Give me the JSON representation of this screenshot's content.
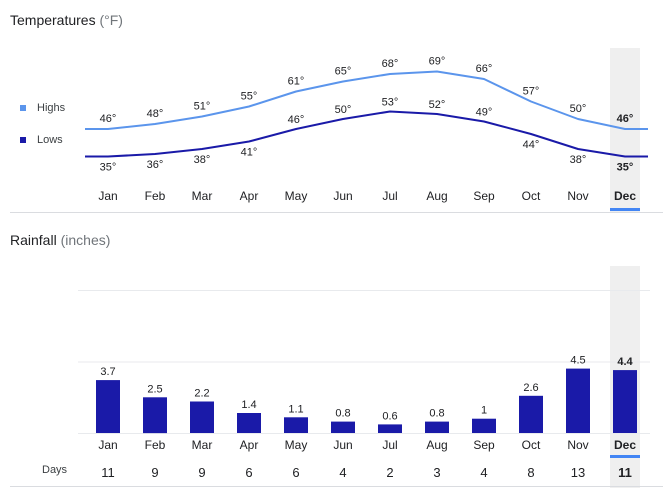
{
  "temperatures": {
    "title": "Temperatures",
    "unit": "(°F)",
    "legend": {
      "highs": "Highs",
      "lows": "Lows"
    }
  },
  "rainfall": {
    "title": "Rainfall",
    "unit": "(inches)"
  },
  "days_label": "Days",
  "selected_month": "Dec",
  "colors": {
    "highs": "#5b95ec",
    "lows": "#1a1aa8",
    "bars": "#1a1aa8",
    "selected_underline": "#4285f4",
    "selected_band": "#efefef",
    "gridline": "#e8eaed",
    "divider": "#dadce0"
  },
  "chart_data": [
    {
      "type": "line",
      "title": "Temperatures",
      "unit": "°F",
      "categories": [
        "Jan",
        "Feb",
        "Mar",
        "Apr",
        "May",
        "Jun",
        "Jul",
        "Aug",
        "Sep",
        "Oct",
        "Nov",
        "Dec"
      ],
      "series": [
        {
          "name": "Highs",
          "values": [
            46,
            48,
            51,
            55,
            61,
            65,
            68,
            69,
            66,
            57,
            50,
            46
          ]
        },
        {
          "name": "Lows",
          "values": [
            35,
            36,
            38,
            41,
            46,
            50,
            53,
            52,
            49,
            44,
            38,
            35
          ]
        }
      ],
      "value_suffix": "°",
      "legend_position": "left",
      "highlighted_category": "Dec"
    },
    {
      "type": "bar",
      "title": "Rainfall",
      "unit": "inches",
      "categories": [
        "Jan",
        "Feb",
        "Mar",
        "Apr",
        "May",
        "Jun",
        "Jul",
        "Aug",
        "Sep",
        "Oct",
        "Nov",
        "Dec"
      ],
      "values": [
        3.7,
        2.5,
        2.2,
        1.4,
        1.1,
        0.8,
        0.6,
        0.8,
        1,
        2.6,
        4.5,
        4.4
      ],
      "value_labels": [
        "3.7",
        "2.5",
        "2.2",
        "1.4",
        "1.1",
        "0.8",
        "0.6",
        "0.8",
        "1",
        "2.6",
        "4.5",
        "4.4"
      ],
      "grid": true,
      "highlighted_category": "Dec"
    },
    {
      "type": "table",
      "row_label": "Days",
      "categories": [
        "Jan",
        "Feb",
        "Mar",
        "Apr",
        "May",
        "Jun",
        "Jul",
        "Aug",
        "Sep",
        "Oct",
        "Nov",
        "Dec"
      ],
      "values": [
        11,
        9,
        9,
        6,
        6,
        4,
        2,
        3,
        4,
        8,
        13,
        11
      ]
    }
  ]
}
